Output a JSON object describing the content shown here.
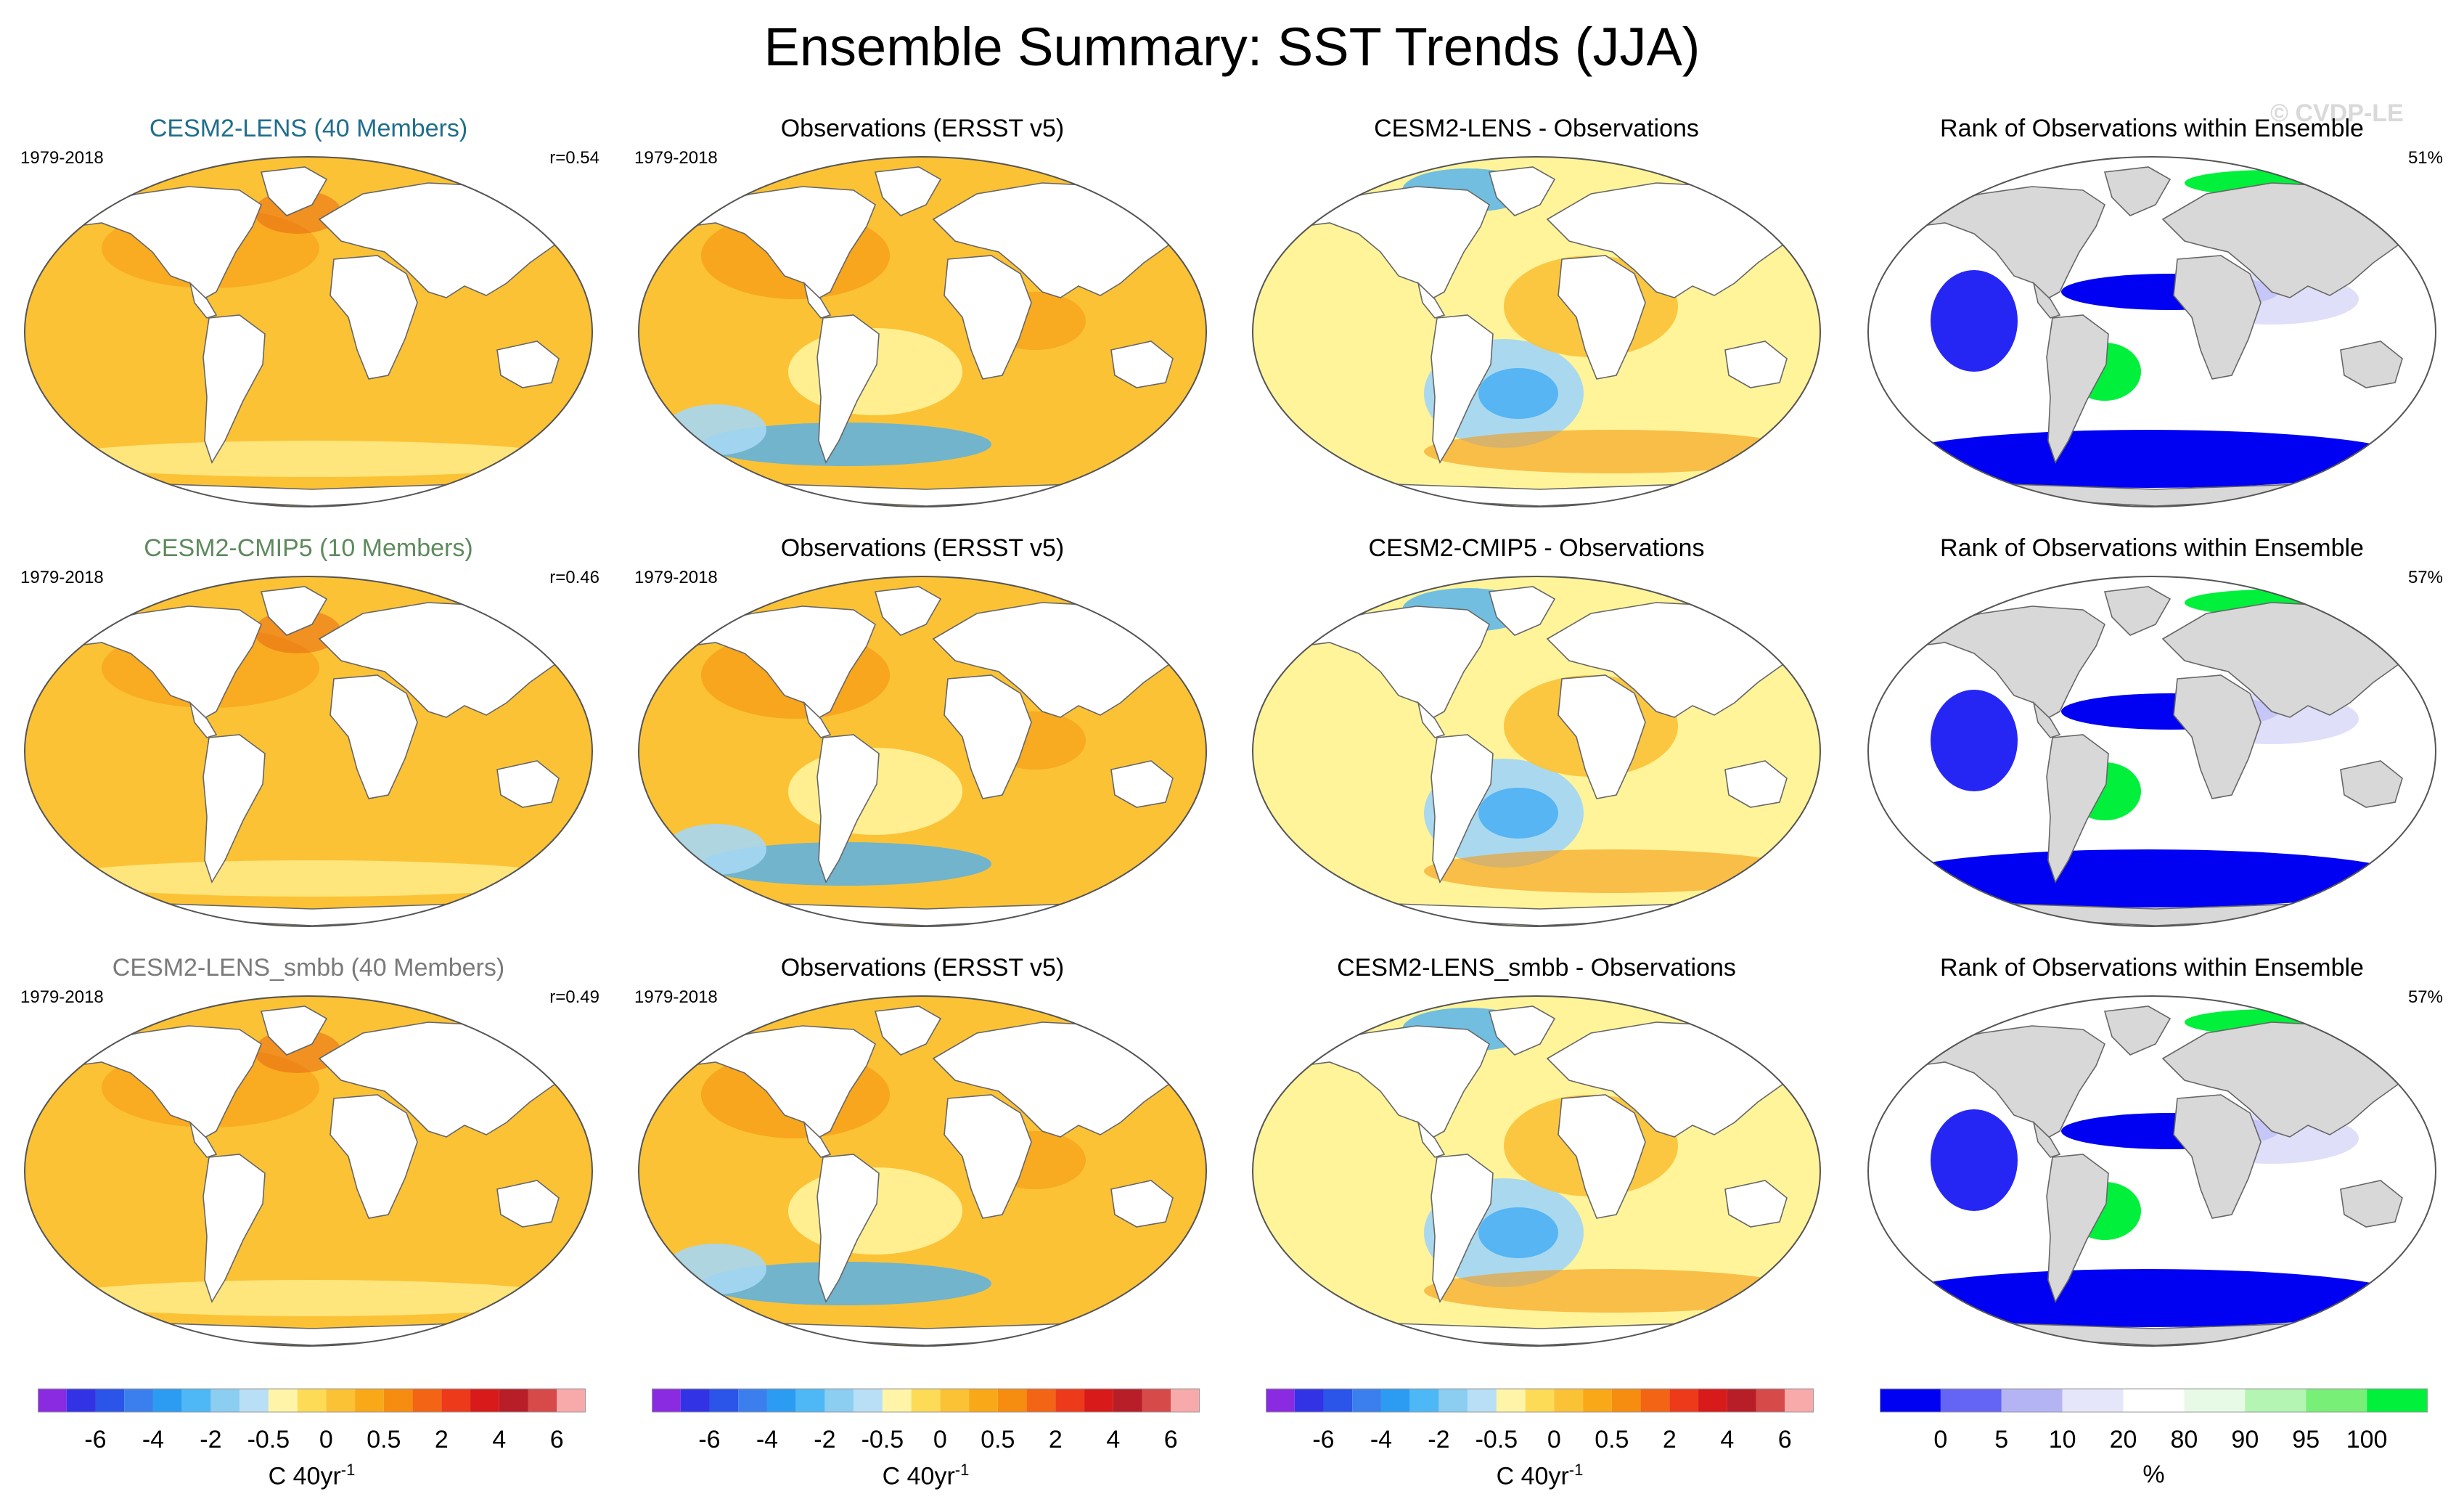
{
  "title": "Ensemble Summary: SST Trends (JJA)",
  "watermark": "© CVDP-LE",
  "colors": {
    "land": "#ffffff",
    "rank_land": "#d8d8d8",
    "coast": "#666666",
    "ocean_warm": "#fcc236",
    "ocean_warm_strong": "#f59a13",
    "ocean_warm_deep": "#e86a10",
    "ocean_neutral": "#fff49a",
    "ocean_cool": "#a5d7f3",
    "ocean_cool_strong": "#4db0f2",
    "rank_white": "#ffffff",
    "rank_blue": "#0000f2",
    "rank_lightblue": "#dcdcfa",
    "rank_green": "#00f03c"
  },
  "rows": [
    {
      "panels": [
        {
          "kind": "model",
          "title": "CESM2-LENS (40 Members)",
          "title_color": "#1f6e8c",
          "period": "1979-2018",
          "stat": "r=0.54"
        },
        {
          "kind": "obs",
          "title": "Observations (ERSST v5)",
          "title_color": "#000000",
          "period": "1979-2018",
          "stat": ""
        },
        {
          "kind": "diff",
          "title": "CESM2-LENS - Observations",
          "title_color": "#000000",
          "period": "",
          "stat": ""
        },
        {
          "kind": "rank",
          "title": "Rank of Observations within Ensemble",
          "title_color": "#000000",
          "period": "",
          "stat": "51%"
        }
      ]
    },
    {
      "panels": [
        {
          "kind": "model",
          "title": "CESM2-CMIP5 (10 Members)",
          "title_color": "#5e8a5e",
          "period": "1979-2018",
          "stat": "r=0.46"
        },
        {
          "kind": "obs",
          "title": "Observations (ERSST v5)",
          "title_color": "#000000",
          "period": "1979-2018",
          "stat": ""
        },
        {
          "kind": "diff",
          "title": "CESM2-CMIP5 - Observations",
          "title_color": "#000000",
          "period": "",
          "stat": ""
        },
        {
          "kind": "rank",
          "title": "Rank of Observations within Ensemble",
          "title_color": "#000000",
          "period": "",
          "stat": "57%"
        }
      ]
    },
    {
      "panels": [
        {
          "kind": "model",
          "title": "CESM2-LENS_smbb (40 Members)",
          "title_color": "#7a7a7a",
          "period": "1979-2018",
          "stat": "r=0.49"
        },
        {
          "kind": "obs",
          "title": "Observations (ERSST v5)",
          "title_color": "#000000",
          "period": "1979-2018",
          "stat": ""
        },
        {
          "kind": "diff",
          "title": "CESM2-LENS_smbb - Observations",
          "title_color": "#000000",
          "period": "",
          "stat": ""
        },
        {
          "kind": "rank",
          "title": "Rank of Observations within Ensemble",
          "title_color": "#000000",
          "period": "",
          "stat": "57%"
        }
      ]
    }
  ],
  "colorbars": [
    {
      "kind": "sst",
      "colors": [
        "#8a2be2",
        "#3333e6",
        "#2a55e8",
        "#3b7fee",
        "#2b9cf2",
        "#4db8f5",
        "#8ccdf2",
        "#b8dff5",
        "#fff4a8",
        "#fedb56",
        "#fcc236",
        "#f9a818",
        "#f68c10",
        "#f36414",
        "#ed3a1a",
        "#d81a1a",
        "#b81e28",
        "#d74a4a",
        "#f8aaaa"
      ],
      "ticks": [
        "-6",
        "-4",
        "-2",
        "-0.5",
        "0",
        "0.5",
        "2",
        "4",
        "6"
      ],
      "unit": "C 40yr",
      "unit_sup": "-1"
    },
    {
      "kind": "sst",
      "colors": [
        "#8a2be2",
        "#3333e6",
        "#2a55e8",
        "#3b7fee",
        "#2b9cf2",
        "#4db8f5",
        "#8ccdf2",
        "#b8dff5",
        "#fff4a8",
        "#fedb56",
        "#fcc236",
        "#f9a818",
        "#f68c10",
        "#f36414",
        "#ed3a1a",
        "#d81a1a",
        "#b81e28",
        "#d74a4a",
        "#f8aaaa"
      ],
      "ticks": [
        "-6",
        "-4",
        "-2",
        "-0.5",
        "0",
        "0.5",
        "2",
        "4",
        "6"
      ],
      "unit": "C 40yr",
      "unit_sup": "-1"
    },
    {
      "kind": "sst",
      "colors": [
        "#8a2be2",
        "#3333e6",
        "#2a55e8",
        "#3b7fee",
        "#2b9cf2",
        "#4db8f5",
        "#8ccdf2",
        "#b8dff5",
        "#fff4a8",
        "#fedb56",
        "#fcc236",
        "#f9a818",
        "#f68c10",
        "#f36414",
        "#ed3a1a",
        "#d81a1a",
        "#b81e28",
        "#d74a4a",
        "#f8aaaa"
      ],
      "ticks": [
        "-6",
        "-4",
        "-2",
        "-0.5",
        "0",
        "0.5",
        "2",
        "4",
        "6"
      ],
      "unit": "C 40yr",
      "unit_sup": "-1"
    },
    {
      "kind": "rank",
      "colors": [
        "#0000f2",
        "#6464f5",
        "#b4b4f5",
        "#e6e6fa",
        "#ffffff",
        "#e6fae6",
        "#b4f5b4",
        "#78f078",
        "#00f03c"
      ],
      "ticks": [
        "0",
        "5",
        "10",
        "20",
        "80",
        "90",
        "95",
        "100"
      ],
      "unit": "%",
      "unit_sup": ""
    }
  ]
}
